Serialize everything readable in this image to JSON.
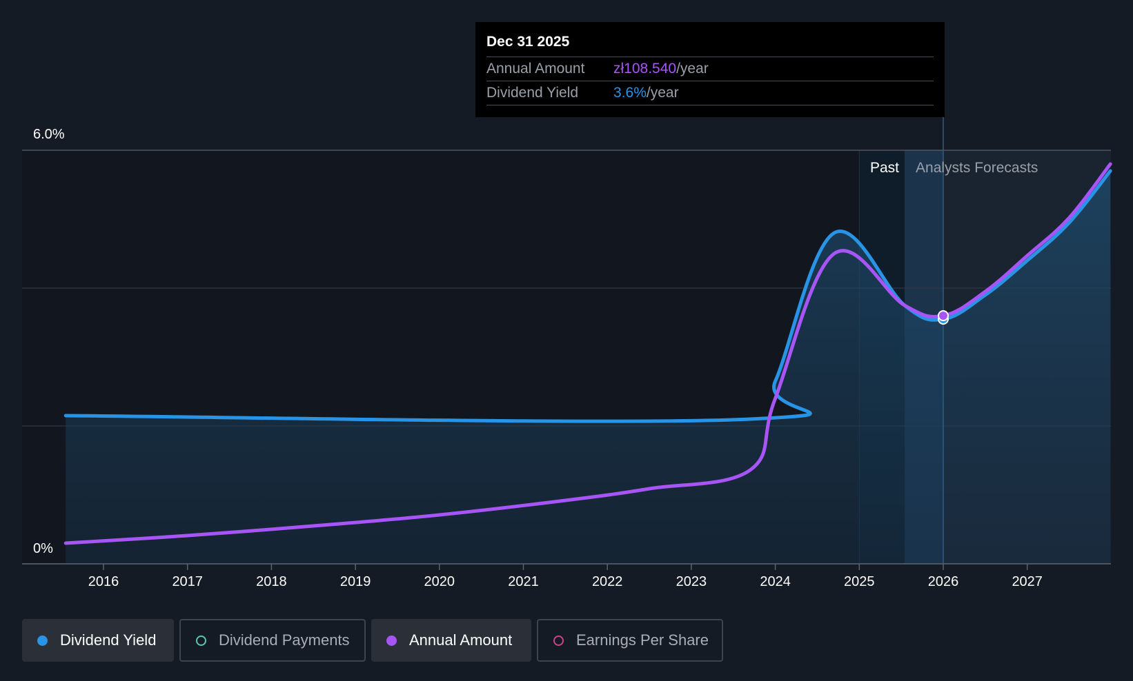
{
  "colors": {
    "yield": "#2994e6",
    "annual": "#a855f7",
    "payments": "#58c9b9",
    "eps": "#d0428a",
    "background": "#151b24"
  },
  "tooltip": {
    "date": "Dec 31 2025",
    "rows": [
      {
        "label": "Annual Amount",
        "value": "zł108.540",
        "suffix": "/year"
      },
      {
        "label": "Dividend Yield",
        "value": "3.6%",
        "suffix": "/year"
      }
    ]
  },
  "legend": [
    {
      "label": "Dividend Yield",
      "state": "active",
      "icon": "filled-circle"
    },
    {
      "label": "Dividend Payments",
      "state": "inactive",
      "icon": "hollow-circle"
    },
    {
      "label": "Annual Amount",
      "state": "active",
      "icon": "filled-circle"
    },
    {
      "label": "Earnings Per Share",
      "state": "inactive",
      "icon": "hollow-circle"
    }
  ],
  "chart_data": {
    "type": "line",
    "x_tick_labels": [
      "2016",
      "2017",
      "2018",
      "2019",
      "2020",
      "2021",
      "2022",
      "2023",
      "2024",
      "2025",
      "2026",
      "2027"
    ],
    "x_range": [
      2015.1,
      2027.99
    ],
    "y_tick_labels": [
      "6.0%",
      "0%"
    ],
    "ylim": [
      0,
      6
    ],
    "y_gridlines": [
      0,
      2,
      4,
      6
    ],
    "past_label": "Past",
    "forecast_label": "Analysts Forecasts",
    "past_region": [
      2025.0,
      2025.54
    ],
    "forecast_start": 2025.54,
    "highlight_x": 2026.0,
    "series": [
      {
        "name": "Dividend Yield",
        "color_key": "yield",
        "unit": "%",
        "points": [
          [
            2015.55,
            2.15
          ],
          [
            2023.7,
            2.1
          ],
          [
            2024.0,
            2.65
          ],
          [
            2024.7,
            4.8
          ],
          [
            2025.54,
            3.75
          ],
          [
            2026.0,
            3.55
          ],
          [
            2026.5,
            3.9
          ],
          [
            2027.0,
            4.4
          ],
          [
            2027.5,
            4.95
          ],
          [
            2027.99,
            5.7
          ]
        ]
      },
      {
        "name": "Annual Amount",
        "color_key": "annual",
        "unit": "zł/year",
        "points": [
          [
            2015.55,
            0.3
          ],
          [
            2017.0,
            0.41
          ],
          [
            2018.5,
            0.55
          ],
          [
            2020.0,
            0.71
          ],
          [
            2021.5,
            0.92
          ],
          [
            2022.5,
            1.09
          ],
          [
            2023.7,
            1.36
          ],
          [
            2024.0,
            2.4
          ],
          [
            2024.7,
            4.5
          ],
          [
            2025.54,
            3.75
          ],
          [
            2026.0,
            3.6
          ],
          [
            2026.5,
            3.95
          ],
          [
            2027.0,
            4.47
          ],
          [
            2027.5,
            5.02
          ],
          [
            2027.99,
            5.8
          ]
        ]
      }
    ]
  }
}
